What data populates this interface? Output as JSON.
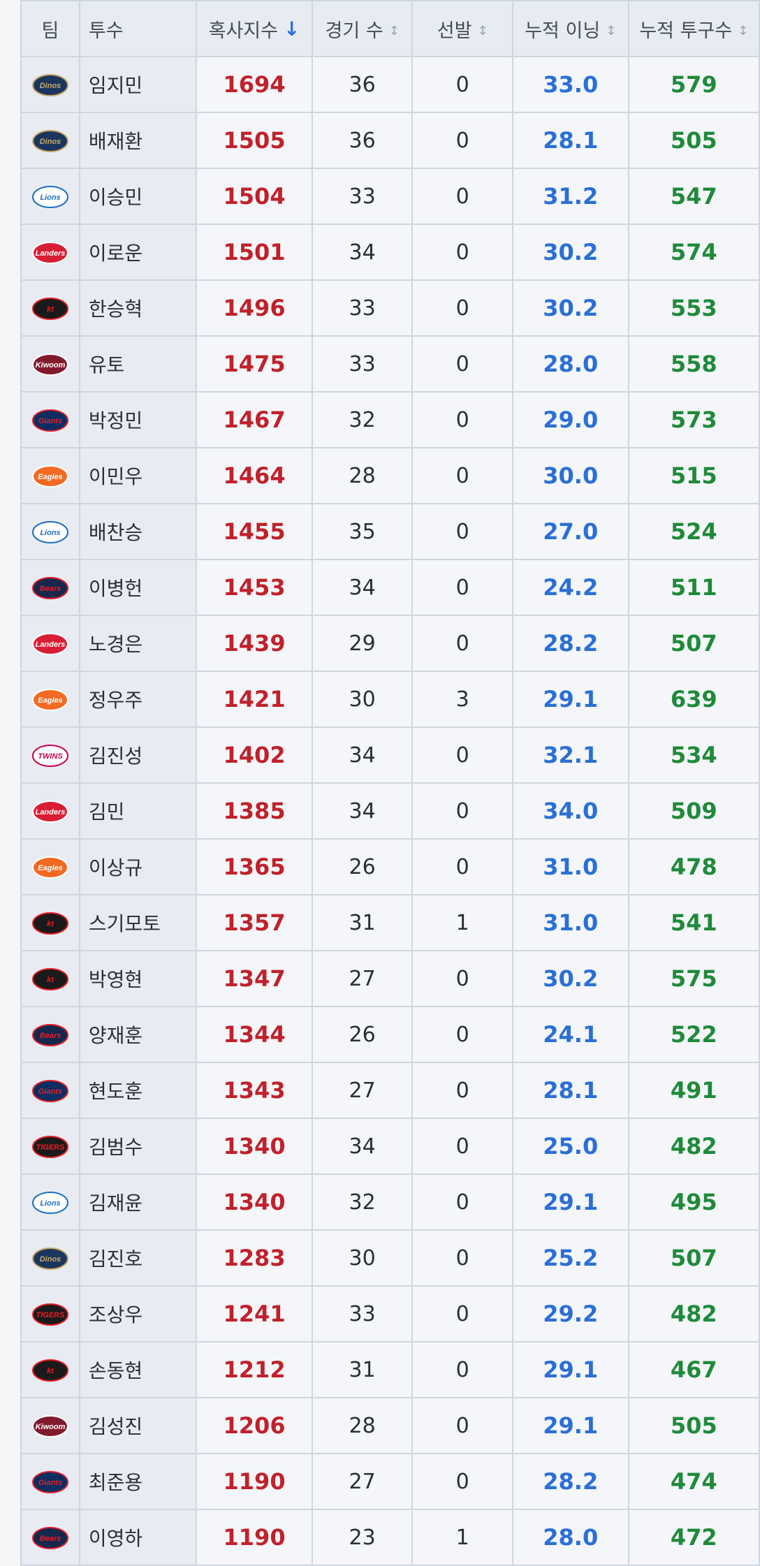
{
  "table": {
    "headers": {
      "team": "팀",
      "pitcher": "투수",
      "strikeouts": "혹사지수",
      "games": "경기 수",
      "starts": "선발",
      "innings": "누적 이닝",
      "pitches": "누적 투구수"
    },
    "sort": {
      "active_column": "strikeouts",
      "direction": "desc",
      "active_icon": "↓",
      "inactive_icon": "↕"
    },
    "team_logos": {
      "dinos": {
        "text": "Dinos",
        "bg": "#1b365d",
        "fg": "#c8a86b",
        "icon": "dinos-logo-icon"
      },
      "lions": {
        "text": "Lions",
        "bg": "#ffffff",
        "fg": "#1c6fc0",
        "icon": "lions-logo-icon"
      },
      "landers": {
        "text": "Landers",
        "bg": "#d81e34",
        "fg": "#ffffff",
        "icon": "landers-logo-icon"
      },
      "ktwiz": {
        "text": "kt",
        "bg": "#1a1a1a",
        "fg": "#e31b23",
        "icon": "ktwiz-logo-icon"
      },
      "kiwoom": {
        "text": "Kiwoom",
        "bg": "#821a2e",
        "fg": "#ffffff",
        "icon": "kiwoom-logo-icon"
      },
      "giants": {
        "text": "Giants",
        "bg": "#0c2d5f",
        "fg": "#e01f2d",
        "icon": "giants-logo-icon"
      },
      "eagles": {
        "text": "Eagles",
        "bg": "#f26a21",
        "fg": "#ffffff",
        "icon": "eagles-logo-icon"
      },
      "bears": {
        "text": "Bears",
        "bg": "#13284b",
        "fg": "#e41b2d",
        "icon": "bears-logo-icon"
      },
      "twins": {
        "text": "TWINS",
        "bg": "#ffffff",
        "fg": "#c30452",
        "icon": "twins-logo-icon"
      },
      "tigers": {
        "text": "TIGERS",
        "bg": "#1a1a1a",
        "fg": "#e3202a",
        "icon": "tigers-logo-icon"
      }
    },
    "rows": [
      {
        "team": "dinos",
        "pitcher": "임지민",
        "strikeouts": "1694",
        "games": "36",
        "starts": "0",
        "innings": "33.0",
        "pitches": "579"
      },
      {
        "team": "dinos",
        "pitcher": "배재환",
        "strikeouts": "1505",
        "games": "36",
        "starts": "0",
        "innings": "28.1",
        "pitches": "505"
      },
      {
        "team": "lions",
        "pitcher": "이승민",
        "strikeouts": "1504",
        "games": "33",
        "starts": "0",
        "innings": "31.2",
        "pitches": "547"
      },
      {
        "team": "landers",
        "pitcher": "이로운",
        "strikeouts": "1501",
        "games": "34",
        "starts": "0",
        "innings": "30.2",
        "pitches": "574"
      },
      {
        "team": "ktwiz",
        "pitcher": "한승혁",
        "strikeouts": "1496",
        "games": "33",
        "starts": "0",
        "innings": "30.2",
        "pitches": "553"
      },
      {
        "team": "kiwoom",
        "pitcher": "유토",
        "strikeouts": "1475",
        "games": "33",
        "starts": "0",
        "innings": "28.0",
        "pitches": "558"
      },
      {
        "team": "giants",
        "pitcher": "박정민",
        "strikeouts": "1467",
        "games": "32",
        "starts": "0",
        "innings": "29.0",
        "pitches": "573"
      },
      {
        "team": "eagles",
        "pitcher": "이민우",
        "strikeouts": "1464",
        "games": "28",
        "starts": "0",
        "innings": "30.0",
        "pitches": "515"
      },
      {
        "team": "lions",
        "pitcher": "배찬승",
        "strikeouts": "1455",
        "games": "35",
        "starts": "0",
        "innings": "27.0",
        "pitches": "524"
      },
      {
        "team": "bears",
        "pitcher": "이병헌",
        "strikeouts": "1453",
        "games": "34",
        "starts": "0",
        "innings": "24.2",
        "pitches": "511"
      },
      {
        "team": "landers",
        "pitcher": "노경은",
        "strikeouts": "1439",
        "games": "29",
        "starts": "0",
        "innings": "28.2",
        "pitches": "507"
      },
      {
        "team": "eagles",
        "pitcher": "정우주",
        "strikeouts": "1421",
        "games": "30",
        "starts": "3",
        "innings": "29.1",
        "pitches": "639"
      },
      {
        "team": "twins",
        "pitcher": "김진성",
        "strikeouts": "1402",
        "games": "34",
        "starts": "0",
        "innings": "32.1",
        "pitches": "534"
      },
      {
        "team": "landers",
        "pitcher": "김민",
        "strikeouts": "1385",
        "games": "34",
        "starts": "0",
        "innings": "34.0",
        "pitches": "509"
      },
      {
        "team": "eagles",
        "pitcher": "이상규",
        "strikeouts": "1365",
        "games": "26",
        "starts": "0",
        "innings": "31.0",
        "pitches": "478"
      },
      {
        "team": "ktwiz",
        "pitcher": "스기모토",
        "strikeouts": "1357",
        "games": "31",
        "starts": "1",
        "innings": "31.0",
        "pitches": "541"
      },
      {
        "team": "ktwiz",
        "pitcher": "박영현",
        "strikeouts": "1347",
        "games": "27",
        "starts": "0",
        "innings": "30.2",
        "pitches": "575"
      },
      {
        "team": "bears",
        "pitcher": "양재훈",
        "strikeouts": "1344",
        "games": "26",
        "starts": "0",
        "innings": "24.1",
        "pitches": "522"
      },
      {
        "team": "giants",
        "pitcher": "현도훈",
        "strikeouts": "1343",
        "games": "27",
        "starts": "0",
        "innings": "28.1",
        "pitches": "491"
      },
      {
        "team": "tigers",
        "pitcher": "김범수",
        "strikeouts": "1340",
        "games": "34",
        "starts": "0",
        "innings": "25.0",
        "pitches": "482"
      },
      {
        "team": "lions",
        "pitcher": "김재윤",
        "strikeouts": "1340",
        "games": "32",
        "starts": "0",
        "innings": "29.1",
        "pitches": "495"
      },
      {
        "team": "dinos",
        "pitcher": "김진호",
        "strikeouts": "1283",
        "games": "30",
        "starts": "0",
        "innings": "25.2",
        "pitches": "507"
      },
      {
        "team": "tigers",
        "pitcher": "조상우",
        "strikeouts": "1241",
        "games": "33",
        "starts": "0",
        "innings": "29.2",
        "pitches": "482"
      },
      {
        "team": "ktwiz",
        "pitcher": "손동현",
        "strikeouts": "1212",
        "games": "31",
        "starts": "0",
        "innings": "29.1",
        "pitches": "467"
      },
      {
        "team": "kiwoom",
        "pitcher": "김성진",
        "strikeouts": "1206",
        "games": "28",
        "starts": "0",
        "innings": "29.1",
        "pitches": "505"
      },
      {
        "team": "giants",
        "pitcher": "최준용",
        "strikeouts": "1190",
        "games": "27",
        "starts": "0",
        "innings": "28.2",
        "pitches": "474"
      },
      {
        "team": "bears",
        "pitcher": "이영하",
        "strikeouts": "1190",
        "games": "23",
        "starts": "1",
        "innings": "28.0",
        "pitches": "472"
      }
    ]
  }
}
